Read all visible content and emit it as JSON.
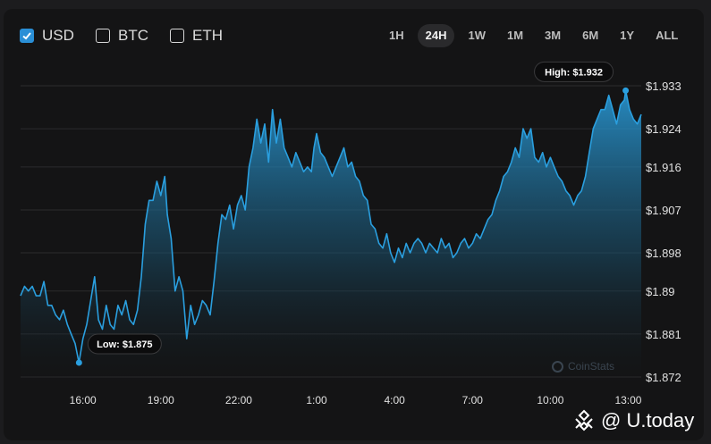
{
  "currencies": [
    {
      "label": "USD",
      "checked": true
    },
    {
      "label": "BTC",
      "checked": false
    },
    {
      "label": "ETH",
      "checked": false
    }
  ],
  "timeframes": [
    "1H",
    "24H",
    "1W",
    "1M",
    "3M",
    "6M",
    "1Y",
    "ALL"
  ],
  "active_timeframe": "24H",
  "watermark": {
    "site": "@ U.today",
    "chart_source": "CoinStats"
  },
  "colors": {
    "line": "#2a9fdf",
    "background": "#141415",
    "accent": "#2a8fd6"
  },
  "chart_data": {
    "type": "area",
    "title": "",
    "xlabel": "",
    "ylabel": "",
    "grid": true,
    "y_ticks": [
      "$1.933",
      "$1.924",
      "$1.916",
      "$1.907",
      "$1.898",
      "$1.89",
      "$1.881",
      "$1.872"
    ],
    "y_tick_values": [
      1.933,
      1.924,
      1.916,
      1.907,
      1.898,
      1.89,
      1.881,
      1.872
    ],
    "x_ticks": [
      "16:00",
      "19:00",
      "22:00",
      "1:00",
      "4:00",
      "7:00",
      "10:00",
      "13:00"
    ],
    "x_tick_values": [
      16,
      19,
      22,
      25,
      28,
      31,
      34,
      37
    ],
    "ylim": [
      1.8705,
      1.9345
    ],
    "xlim": [
      13.6,
      37.5
    ],
    "x_unit": "hours (past 24h, 13:36 to 13:30 next day)",
    "annotations": {
      "low": {
        "label": "Low: $1.875",
        "x": 15.85,
        "y": 1.875
      },
      "high": {
        "label": "High: $1.932",
        "x": 36.9,
        "y": 1.932
      }
    },
    "series": [
      {
        "values": [
          [
            13.6,
            1.889
          ],
          [
            13.75,
            1.891
          ],
          [
            13.9,
            1.89
          ],
          [
            14.05,
            1.891
          ],
          [
            14.2,
            1.889
          ],
          [
            14.35,
            1.889
          ],
          [
            14.5,
            1.892
          ],
          [
            14.65,
            1.887
          ],
          [
            14.8,
            1.887
          ],
          [
            14.95,
            1.885
          ],
          [
            15.1,
            1.884
          ],
          [
            15.25,
            1.886
          ],
          [
            15.4,
            1.883
          ],
          [
            15.55,
            1.881
          ],
          [
            15.7,
            1.879
          ],
          [
            15.85,
            1.875
          ],
          [
            16.0,
            1.88
          ],
          [
            16.15,
            1.883
          ],
          [
            16.3,
            1.888
          ],
          [
            16.45,
            1.893
          ],
          [
            16.6,
            1.884
          ],
          [
            16.75,
            1.882
          ],
          [
            16.9,
            1.887
          ],
          [
            17.05,
            1.883
          ],
          [
            17.2,
            1.882
          ],
          [
            17.35,
            1.887
          ],
          [
            17.5,
            1.885
          ],
          [
            17.65,
            1.888
          ],
          [
            17.8,
            1.884
          ],
          [
            17.95,
            1.883
          ],
          [
            18.1,
            1.886
          ],
          [
            18.25,
            1.893
          ],
          [
            18.4,
            1.904
          ],
          [
            18.55,
            1.909
          ],
          [
            18.7,
            1.909
          ],
          [
            18.85,
            1.913
          ],
          [
            19.0,
            1.91
          ],
          [
            19.15,
            1.914
          ],
          [
            19.25,
            1.906
          ],
          [
            19.4,
            1.901
          ],
          [
            19.55,
            1.89
          ],
          [
            19.7,
            1.893
          ],
          [
            19.85,
            1.89
          ],
          [
            20.0,
            1.88
          ],
          [
            20.15,
            1.887
          ],
          [
            20.3,
            1.883
          ],
          [
            20.45,
            1.885
          ],
          [
            20.6,
            1.888
          ],
          [
            20.75,
            1.887
          ],
          [
            20.9,
            1.885
          ],
          [
            21.05,
            1.892
          ],
          [
            21.2,
            1.9
          ],
          [
            21.35,
            1.906
          ],
          [
            21.5,
            1.905
          ],
          [
            21.65,
            1.908
          ],
          [
            21.8,
            1.903
          ],
          [
            21.95,
            1.908
          ],
          [
            22.1,
            1.91
          ],
          [
            22.25,
            1.907
          ],
          [
            22.4,
            1.916
          ],
          [
            22.55,
            1.92
          ],
          [
            22.7,
            1.926
          ],
          [
            22.85,
            1.921
          ],
          [
            23.0,
            1.925
          ],
          [
            23.15,
            1.917
          ],
          [
            23.3,
            1.928
          ],
          [
            23.45,
            1.921
          ],
          [
            23.6,
            1.926
          ],
          [
            23.75,
            1.92
          ],
          [
            23.9,
            1.918
          ],
          [
            24.05,
            1.916
          ],
          [
            24.2,
            1.919
          ],
          [
            24.35,
            1.917
          ],
          [
            24.5,
            1.915
          ],
          [
            24.65,
            1.916
          ],
          [
            24.8,
            1.915
          ],
          [
            24.9,
            1.92
          ],
          [
            25.0,
            1.923
          ],
          [
            25.15,
            1.919
          ],
          [
            25.3,
            1.918
          ],
          [
            25.45,
            1.916
          ],
          [
            25.6,
            1.914
          ],
          [
            25.75,
            1.916
          ],
          [
            25.9,
            1.918
          ],
          [
            26.05,
            1.92
          ],
          [
            26.2,
            1.916
          ],
          [
            26.35,
            1.917
          ],
          [
            26.5,
            1.914
          ],
          [
            26.65,
            1.913
          ],
          [
            26.8,
            1.91
          ],
          [
            26.95,
            1.909
          ],
          [
            27.1,
            1.904
          ],
          [
            27.25,
            1.903
          ],
          [
            27.4,
            1.9
          ],
          [
            27.55,
            1.899
          ],
          [
            27.7,
            1.902
          ],
          [
            27.85,
            1.898
          ],
          [
            28.0,
            1.896
          ],
          [
            28.15,
            1.899
          ],
          [
            28.3,
            1.897
          ],
          [
            28.45,
            1.9
          ],
          [
            28.6,
            1.898
          ],
          [
            28.75,
            1.9
          ],
          [
            28.9,
            1.901
          ],
          [
            29.05,
            1.9
          ],
          [
            29.2,
            1.898
          ],
          [
            29.35,
            1.9
          ],
          [
            29.5,
            1.899
          ],
          [
            29.65,
            1.898
          ],
          [
            29.8,
            1.901
          ],
          [
            29.95,
            1.899
          ],
          [
            30.1,
            1.9
          ],
          [
            30.25,
            1.897
          ],
          [
            30.4,
            1.898
          ],
          [
            30.55,
            1.9
          ],
          [
            30.7,
            1.901
          ],
          [
            30.85,
            1.899
          ],
          [
            31.0,
            1.9
          ],
          [
            31.15,
            1.902
          ],
          [
            31.3,
            1.901
          ],
          [
            31.45,
            1.903
          ],
          [
            31.6,
            1.905
          ],
          [
            31.75,
            1.906
          ],
          [
            31.9,
            1.909
          ],
          [
            32.05,
            1.911
          ],
          [
            32.2,
            1.914
          ],
          [
            32.35,
            1.915
          ],
          [
            32.5,
            1.917
          ],
          [
            32.65,
            1.92
          ],
          [
            32.8,
            1.918
          ],
          [
            32.95,
            1.924
          ],
          [
            33.1,
            1.922
          ],
          [
            33.25,
            1.924
          ],
          [
            33.4,
            1.918
          ],
          [
            33.55,
            1.917
          ],
          [
            33.7,
            1.919
          ],
          [
            33.85,
            1.916
          ],
          [
            34.0,
            1.918
          ],
          [
            34.15,
            1.916
          ],
          [
            34.3,
            1.914
          ],
          [
            34.45,
            1.913
          ],
          [
            34.6,
            1.911
          ],
          [
            34.75,
            1.91
          ],
          [
            34.9,
            1.908
          ],
          [
            35.05,
            1.91
          ],
          [
            35.2,
            1.911
          ],
          [
            35.35,
            1.914
          ],
          [
            35.5,
            1.919
          ],
          [
            35.65,
            1.924
          ],
          [
            35.8,
            1.926
          ],
          [
            35.95,
            1.928
          ],
          [
            36.1,
            1.928
          ],
          [
            36.25,
            1.931
          ],
          [
            36.4,
            1.928
          ],
          [
            36.55,
            1.925
          ],
          [
            36.7,
            1.929
          ],
          [
            36.85,
            1.93
          ],
          [
            36.9,
            1.932
          ],
          [
            37.05,
            1.928
          ],
          [
            37.2,
            1.926
          ],
          [
            37.35,
            1.925
          ],
          [
            37.5,
            1.927
          ]
        ]
      }
    ]
  }
}
